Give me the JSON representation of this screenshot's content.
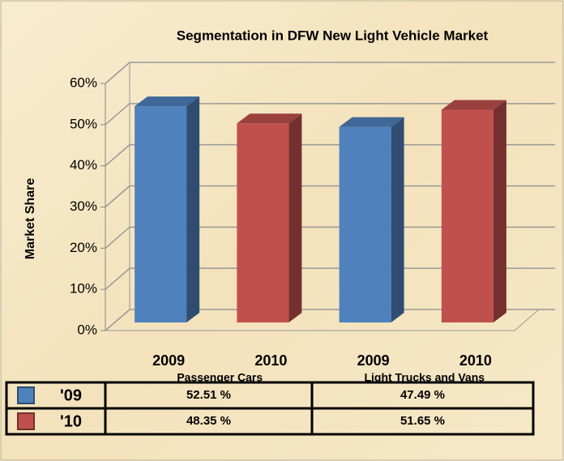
{
  "chart_data": {
    "type": "bar3d",
    "title": "Segmentation in DFW New Light Vehicle Market",
    "y_label": "Market Share",
    "categories": [
      "Passenger Cars",
      "Light Trucks and Vans"
    ],
    "bar_labels": [
      "2009",
      "2010",
      "2009",
      "2010"
    ],
    "series": [
      {
        "name": "'09",
        "color": "#4f81bd",
        "values": [
          52.51,
          47.49
        ],
        "value_labels": [
          "52.51 %",
          "47.49 %"
        ]
      },
      {
        "name": "'10",
        "color": "#c0504d",
        "values": [
          48.35,
          51.65
        ],
        "value_labels": [
          "48.35 %",
          "51.65 %"
        ]
      }
    ],
    "ylim": [
      0,
      60
    ],
    "yticks": [
      {
        "value": 0,
        "label": "0%"
      },
      {
        "value": 10,
        "label": "10%"
      },
      {
        "value": 20,
        "label": "20%"
      },
      {
        "value": 30,
        "label": "30%"
      },
      {
        "value": 40,
        "label": "40%"
      },
      {
        "value": 50,
        "label": "50%"
      },
      {
        "value": 60,
        "label": "60%"
      }
    ],
    "grid": true
  }
}
